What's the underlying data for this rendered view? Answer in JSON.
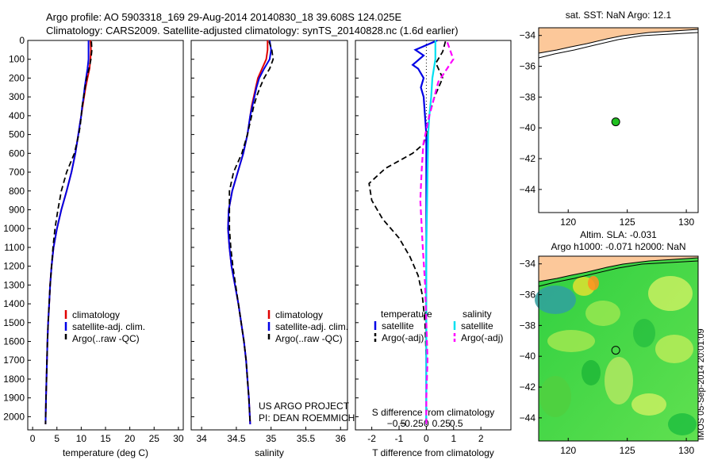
{
  "header": {
    "line1": "Argo profile: AO 5903318_169 29-Aug-2014 20140830_18 39.608S 124.025E",
    "line2": "Climatology: CARS2009. Satellite-adjusted climatology: synTS_20140828.nc (1.6d earlier)"
  },
  "stamp": "IMOS 05-Sep-2014 20:01:09",
  "colors": {
    "climatology": "#e00000",
    "satellite": "#0000e6",
    "argo": "#000000",
    "sal_satellite": "#00e0f0",
    "sal_argo": "#ff00ff",
    "land": "#fcc89a",
    "float": "#20c020"
  },
  "chart_data": [
    {
      "type": "line",
      "id": "temperature",
      "xlabel": "temperature (deg C)",
      "ylabel": "",
      "xlim": [
        -1,
        31
      ],
      "ylim": [
        2070,
        0
      ],
      "xticks": [
        "0",
        "5",
        "10",
        "15",
        "20",
        "25",
        "30"
      ],
      "yticks": [
        "0",
        "100",
        "200",
        "300",
        "400",
        "500",
        "600",
        "700",
        "800",
        "900",
        "1000",
        "1100",
        "1200",
        "1300",
        "1400",
        "1500",
        "1600",
        "1700",
        "1800",
        "1900",
        "2000"
      ],
      "grid": false,
      "legend_position": "lower-middle",
      "legend": [
        "climatology",
        "satellite-adj. clim.",
        "Argo(..raw -QC)"
      ],
      "series": [
        {
          "name": "climatology",
          "x": [
            11.9,
            12.0,
            11.9,
            11.7,
            11.3,
            10.9,
            10.6,
            10.3,
            10.0,
            9.7,
            9.4,
            8.8,
            8.0,
            7.0,
            5.9,
            5.0,
            4.3,
            3.9,
            3.6,
            3.4,
            3.2,
            3.05,
            2.95,
            2.85,
            2.75,
            2.65
          ],
          "y": [
            0,
            50,
            100,
            150,
            200,
            250,
            300,
            350,
            400,
            450,
            500,
            600,
            700,
            800,
            900,
            1000,
            1100,
            1200,
            1300,
            1400,
            1500,
            1600,
            1700,
            1800,
            1900,
            2040
          ]
        },
        {
          "name": "satellite-adj. clim.",
          "x": [
            11.5,
            11.5,
            11.5,
            11.3,
            11.0,
            10.7,
            10.5,
            10.2,
            10.0,
            9.7,
            9.4,
            8.8,
            8.0,
            7.0,
            5.9,
            5.0,
            4.3,
            3.9,
            3.6,
            3.4,
            3.2,
            3.05,
            2.95,
            2.85,
            2.75,
            2.65
          ],
          "y": [
            0,
            50,
            100,
            150,
            200,
            250,
            300,
            350,
            400,
            450,
            500,
            600,
            700,
            800,
            900,
            1000,
            1100,
            1200,
            1300,
            1400,
            1500,
            1600,
            1700,
            1800,
            1900,
            2040
          ]
        },
        {
          "name": "Argo(..raw -QC)",
          "x": [
            12.1,
            12.2,
            12.0,
            11.6,
            11.1,
            10.8,
            10.5,
            10.2,
            10.0,
            9.8,
            9.5,
            8.6,
            7.0,
            5.9,
            5.2,
            4.6,
            4.2,
            3.9,
            3.6,
            3.4,
            3.2,
            3.05,
            2.95,
            2.85,
            2.75,
            2.65
          ],
          "y": [
            5,
            50,
            100,
            150,
            200,
            250,
            300,
            350,
            400,
            450,
            500,
            600,
            700,
            800,
            900,
            1000,
            1100,
            1200,
            1300,
            1400,
            1500,
            1600,
            1700,
            1800,
            1900,
            2040
          ]
        }
      ]
    },
    {
      "type": "line",
      "id": "salinity",
      "xlabel": "salinity",
      "ylabel": "",
      "xlim": [
        33.85,
        36.1
      ],
      "ylim": [
        2070,
        0
      ],
      "xticks": [
        "34",
        "34.5",
        "35",
        "35.5",
        "36"
      ],
      "grid": false,
      "legend_position": "lower-middle",
      "legend": [
        "climatology",
        "satellite-adj. clim.",
        "Argo(..raw -QC)"
      ],
      "annotation": [
        "US ARGO PROJECT",
        "PI: DEAN ROEMMICH"
      ],
      "series": [
        {
          "name": "climatology",
          "x": [
            34.95,
            34.95,
            34.93,
            34.87,
            34.81,
            34.78,
            34.75,
            34.72,
            34.7,
            34.68,
            34.66,
            34.6,
            34.52,
            34.44,
            34.39,
            34.38,
            34.4,
            34.43,
            34.48,
            34.53,
            34.57,
            34.61,
            34.64,
            34.66,
            34.68,
            34.7
          ],
          "y": [
            0,
            50,
            100,
            150,
            200,
            250,
            300,
            350,
            400,
            450,
            500,
            600,
            700,
            800,
            900,
            1000,
            1100,
            1200,
            1300,
            1400,
            1500,
            1600,
            1700,
            1800,
            1900,
            2040
          ]
        },
        {
          "name": "satellite-adj. clim.",
          "x": [
            34.98,
            35.0,
            34.98,
            34.9,
            34.83,
            34.79,
            34.76,
            34.73,
            34.7,
            34.68,
            34.66,
            34.6,
            34.52,
            34.44,
            34.39,
            34.38,
            34.4,
            34.43,
            34.48,
            34.53,
            34.57,
            34.61,
            34.64,
            34.66,
            34.68,
            34.7
          ],
          "y": [
            0,
            50,
            100,
            150,
            200,
            250,
            300,
            350,
            400,
            450,
            500,
            600,
            700,
            800,
            900,
            1000,
            1100,
            1200,
            1300,
            1400,
            1500,
            1600,
            1700,
            1800,
            1900,
            2040
          ]
        },
        {
          "name": "Argo(..raw -QC)",
          "x": [
            34.97,
            35.01,
            35.03,
            34.98,
            34.9,
            34.84,
            34.79,
            34.75,
            34.72,
            34.69,
            34.66,
            34.58,
            34.46,
            34.4,
            34.4,
            34.4,
            34.42,
            34.45,
            34.49,
            34.53,
            34.57,
            34.61,
            34.64,
            34.66,
            34.68,
            34.7
          ],
          "y": [
            5,
            50,
            100,
            150,
            200,
            250,
            300,
            350,
            400,
            450,
            500,
            600,
            700,
            800,
            900,
            1000,
            1100,
            1200,
            1300,
            1400,
            1500,
            1600,
            1700,
            1800,
            1900,
            2040
          ]
        }
      ]
    },
    {
      "type": "line",
      "id": "differences",
      "xlabel": "T difference from climatology",
      "xlabel_top": "S difference from climatology",
      "xlim_T": [
        -2.6,
        3.1
      ],
      "xticks_T": [
        "-2",
        "-1",
        "0",
        "1",
        "2"
      ],
      "xticks_S": [
        "-0.5",
        "-0.25",
        "0",
        "0.25",
        "0.5"
      ],
      "ylim": [
        2070,
        0
      ],
      "grid": false,
      "legend_position": "lower-middle",
      "legend_headers": [
        "temperature",
        "salinity"
      ],
      "legend": [
        "satellite",
        "Argo(-adj)",
        "satellite",
        "Argo(-adj)"
      ],
      "series": [
        {
          "name": "satellite",
          "x": [
            0.4,
            -0.4,
            -0.1,
            -0.5,
            -0.3,
            -0.1,
            -0.2,
            -0.1,
            -0.05,
            0.0,
            0.0,
            0.0,
            0.0,
            0.0,
            0.0,
            0.0,
            0.0,
            0.0,
            0.0,
            0.0
          ],
          "y": [
            0,
            50,
            80,
            130,
            150,
            200,
            250,
            300,
            400,
            500,
            600,
            700,
            800,
            900,
            1000,
            1200,
            1400,
            1600,
            1800,
            2040
          ]
        },
        {
          "name": "Argo(-adj)",
          "x": [
            0.7,
            0.6,
            0.35,
            0.6,
            0.3,
            0.1,
            0.0,
            -0.1,
            -0.5,
            -1.5,
            -2.1,
            -2.0,
            -1.6,
            -1.0,
            -0.6,
            -0.3,
            -0.15,
            -0.05,
            0.0,
            0.0
          ],
          "y": [
            5,
            60,
            120,
            200,
            300,
            400,
            500,
            550,
            600,
            680,
            760,
            850,
            950,
            1050,
            1150,
            1250,
            1350,
            1500,
            1700,
            2040
          ]
        },
        {
          "name": "satellite",
          "x": [
            0.15,
            0.15,
            0.1,
            0.08,
            0.05,
            0.03,
            0.02,
            0.01,
            0.0,
            0.0,
            0.0,
            0.0,
            0.0
          ],
          "y": [
            0,
            100,
            200,
            300,
            400,
            500,
            700,
            900,
            1100,
            1300,
            1500,
            1700,
            2040
          ]
        },
        {
          "name": "Argo(-adj)",
          "x": [
            0.35,
            0.45,
            0.2,
            0.05,
            -0.05,
            -0.08,
            -0.1,
            -0.06,
            -0.02,
            0.0,
            0.02,
            0.0,
            0.0
          ],
          "y": [
            10,
            100,
            220,
            400,
            550,
            700,
            850,
            1100,
            1300,
            1500,
            1700,
            1900,
            2040
          ]
        }
      ]
    },
    {
      "type": "scatter",
      "id": "sst-map",
      "title": "sat. SST: NaN Argo: 12.1",
      "xlim": [
        117.5,
        131
      ],
      "ylim": [
        -45.5,
        -33.5
      ],
      "xticks": [
        "120",
        "125",
        "130"
      ],
      "yticks": [
        "-34",
        "-36",
        "-38",
        "-40",
        "-42",
        "-44"
      ],
      "points": [
        {
          "lon": 124.025,
          "lat": -39.608
        }
      ]
    },
    {
      "type": "heatmap",
      "id": "sla-map",
      "title": "Altim. SLA: -0.031",
      "subtitle": "Argo h1000: -0.071 h2000: NaN",
      "xlim": [
        117.5,
        131
      ],
      "ylim": [
        -45.5,
        -33.5
      ],
      "xticks": [
        "120",
        "125",
        "130"
      ],
      "yticks": [
        "-34",
        "-36",
        "-38",
        "-40",
        "-42",
        "-44"
      ],
      "points": [
        {
          "lon": 124.025,
          "lat": -39.608
        }
      ]
    }
  ]
}
